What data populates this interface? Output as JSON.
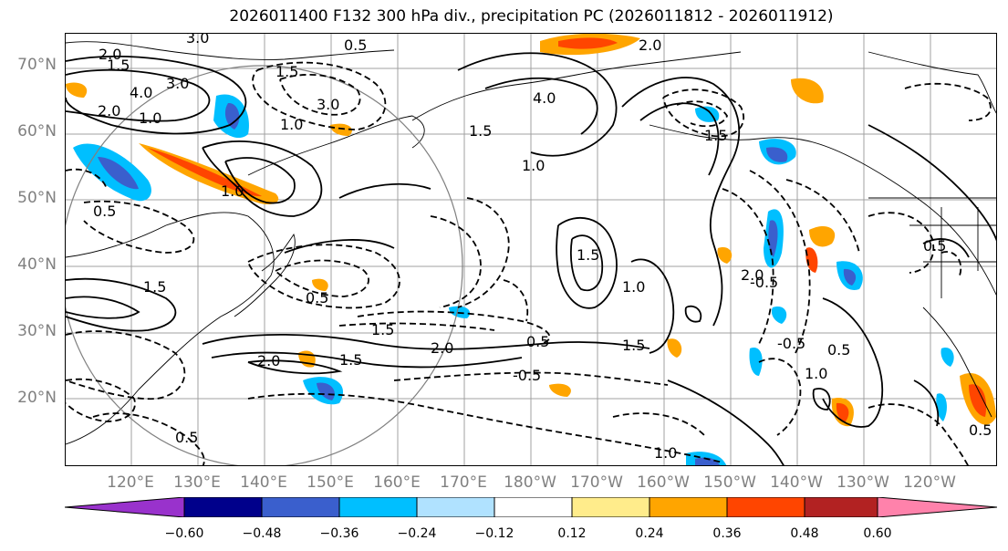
{
  "title": "2026011400 F132 300 hPa div., precipitation PC (2026011812 - 2026011912)",
  "lat_labels": [
    "70°N",
    "60°N",
    "50°N",
    "40°N",
    "30°N",
    "20°N"
  ],
  "lon_labels": [
    "120°E",
    "130°E",
    "140°E",
    "150°E",
    "160°E",
    "170°E",
    "180°W",
    "170°W",
    "160°W",
    "150°W",
    "140°W",
    "130°W",
    "120°W"
  ],
  "contour_labels": [
    "3.0",
    "2.0",
    "0.5",
    "1.5",
    "4.0",
    "3.0",
    "1.0",
    "2.0",
    "1.5",
    "1.0",
    "3.0",
    "1.0",
    "0.5",
    "1.5",
    "2.0",
    "1.5",
    "0.5",
    "1.5",
    "2.0",
    "-0.5",
    "1.5",
    "4.0",
    "2.0",
    "1.5",
    "1.0",
    "1.5",
    "-0.5",
    "1.0",
    "0.5",
    "0.5",
    "-0.5",
    "0.5",
    "1.5",
    "2.0",
    "1.0",
    "0.5",
    "1.0",
    "0.5"
  ],
  "colorbar": {
    "ticks": [
      "−0.60",
      "−0.48",
      "−0.36",
      "−0.24",
      "−0.12",
      "0.12",
      "0.24",
      "0.36",
      "0.48",
      "0.60"
    ],
    "colors": [
      "#9932cc",
      "#00008b",
      "#3a5fcd",
      "#00bfff",
      "#b0e2ff",
      "#ffffff",
      "#ffec8b",
      "#ffa500",
      "#ff4500",
      "#b22222",
      "#ff82ab"
    ]
  }
}
